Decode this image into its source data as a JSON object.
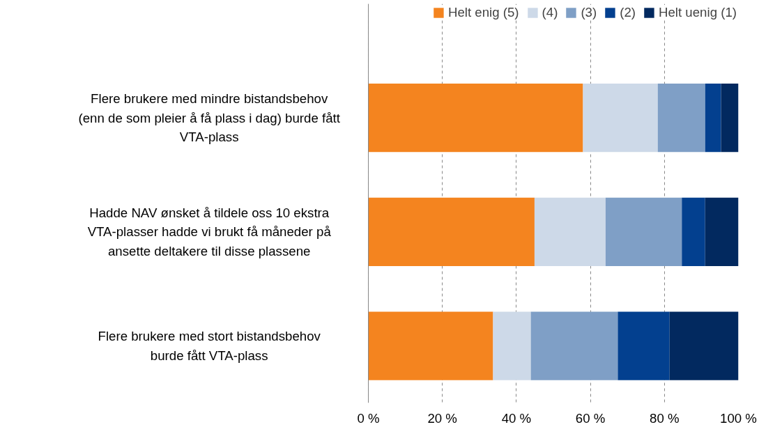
{
  "chart_data": {
    "type": "bar",
    "orientation": "horizontal",
    "stacked": true,
    "categories": [
      "Flere brukere med mindre bistandsbehov\n(enn de som pleier å få plass i dag) burde fått\nVTA-plass",
      "Hadde NAV ønsket å tildele oss 10 ekstra\nVTA-plasser hadde vi brukt få måneder på\nansette deltakere til disse plassene",
      "Flere brukere med stort bistandsbehov\nburde fått VTA-plass"
    ],
    "series": [
      {
        "name": "Helt enig (5)",
        "color": "#f4841f",
        "values": [
          58.0,
          44.9,
          33.7
        ]
      },
      {
        "name": "(4)",
        "color": "#cdd9e8",
        "values": [
          20.2,
          19.2,
          10.2
        ]
      },
      {
        "name": "(3)",
        "color": "#7f9fc6",
        "values": [
          12.8,
          20.6,
          23.5
        ]
      },
      {
        "name": "(2)",
        "color": "#03408f",
        "values": [
          4.3,
          6.3,
          14.0
        ]
      },
      {
        "name": "Helt uenig (1)",
        "color": "#02295f",
        "values": [
          4.7,
          9.0,
          18.6
        ]
      }
    ],
    "xlim": [
      0,
      100
    ],
    "xticks": [
      {
        "value": 0,
        "label": "0 %"
      },
      {
        "value": 20,
        "label": "20 %"
      },
      {
        "value": 40,
        "label": "40 %"
      },
      {
        "value": 60,
        "label": "60 %"
      },
      {
        "value": 80,
        "label": "80 %"
      },
      {
        "value": 100,
        "label": "100 %"
      }
    ],
    "grid": "x",
    "legend": "top"
  }
}
